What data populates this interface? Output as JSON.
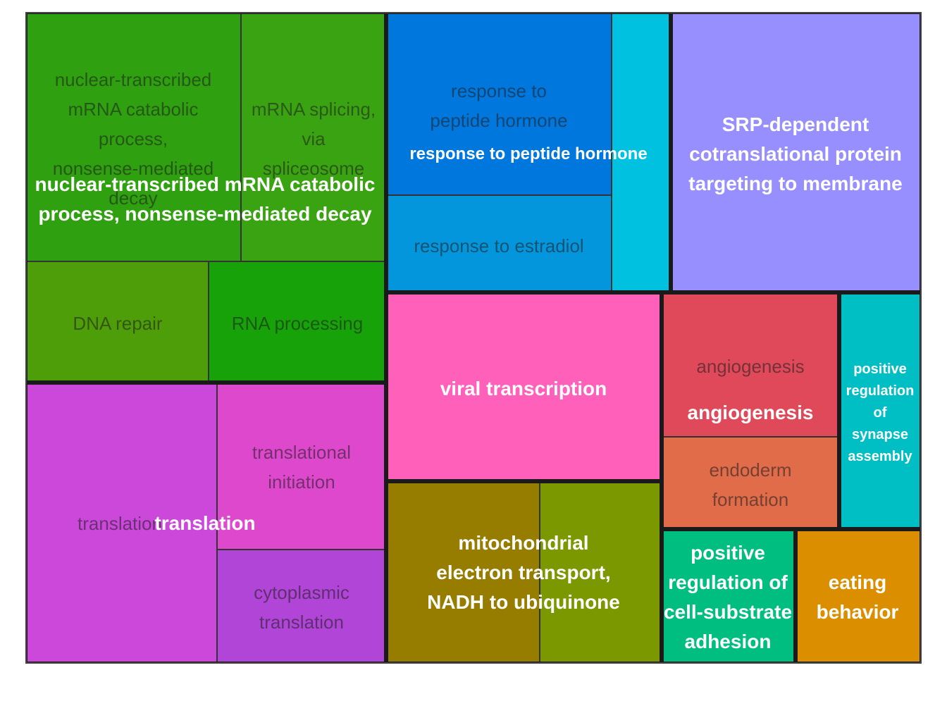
{
  "chart_data": {
    "type": "treemap",
    "title": "",
    "groups": [
      {
        "name": "nuclear-transcribed mRNA catabolic process, nonsense-mediated decay",
        "label_text": "nuclear-transcribed mRNA catabolic\nprocess, nonsense-mediated decay",
        "children": [
          {
            "name": "nuclear-transcribed mRNA catabolic process, nonsense-mediated decay",
            "label_text": "nuclear-transcribed\nmRNA catabolic\nprocess,\nnonsense-mediated\ndecay",
            "color": "#2FA00F"
          },
          {
            "name": "mRNA splicing, via spliceosome",
            "label_text": "mRNA splicing,\nvia\nspliceosome",
            "color": "#3AA312"
          },
          {
            "name": "DNA repair",
            "label_text": "DNA repair",
            "color": "#4E9E0A"
          },
          {
            "name": "RNA processing",
            "label_text": "RNA processing",
            "color": "#18A20A"
          }
        ]
      },
      {
        "name": "response to peptide hormone",
        "label_text": "response to peptide hormone",
        "children": [
          {
            "name": "response to peptide hormone",
            "label_text": "response to\npeptide hormone",
            "color": "#0077DD"
          },
          {
            "name": "response to estradiol",
            "label_text": "response to estradiol",
            "color": "#0496DC"
          },
          {
            "name": "",
            "label_text": "",
            "color": "#00C2E0"
          }
        ]
      },
      {
        "name": "SRP-dependent cotranslational protein targeting to membrane",
        "label_text": "SRP-dependent\ncotranslational protein\ntargeting to membrane",
        "children": [
          {
            "name": "SRP-dependent cotranslational protein targeting to membrane",
            "label_text": "",
            "color": "#978FFE"
          }
        ]
      },
      {
        "name": "translation",
        "label_text": "translation",
        "children": [
          {
            "name": "translation",
            "label_text": "translation",
            "color": "#CB48DB"
          },
          {
            "name": "translational initiation",
            "label_text": "translational\ninitiation",
            "color": "#DE48CC"
          },
          {
            "name": "cytoplasmic translation",
            "label_text": "cytoplasmic\ntranslation",
            "color": "#B045D8"
          }
        ]
      },
      {
        "name": "viral transcription",
        "label_text": "viral transcription",
        "children": [
          {
            "name": "viral transcription",
            "label_text": "",
            "color": "#FF60BA"
          }
        ]
      },
      {
        "name": "mitochondrial electron transport, NADH to ubiquinone",
        "label_text": "mitochondrial\nelectron transport,\nNADH to ubiquinone",
        "children": [
          {
            "name": "mitochondrial electron transport, NADH to ubiquinone",
            "label_text": "",
            "color": "#967D00"
          },
          {
            "name": "",
            "label_text": "",
            "color": "#7B9800"
          }
        ]
      },
      {
        "name": "angiogenesis",
        "label_text": "angiogenesis",
        "children": [
          {
            "name": "angiogenesis",
            "label_text": "angiogenesis",
            "color": "#E0495A"
          },
          {
            "name": "endoderm formation",
            "label_text": "endoderm\nformation",
            "color": "#E06C4A"
          }
        ]
      },
      {
        "name": "positive regulation of synapse assembly",
        "label_text": "positive\nregulation\nof\nsynapse\nassembly",
        "children": [
          {
            "name": "positive regulation of synapse assembly",
            "label_text": "",
            "color": "#00BFC4"
          }
        ]
      },
      {
        "name": "positive regulation of cell-substrate adhesion",
        "label_text": "positive\nregulation of\ncell-substrate\nadhesion",
        "children": [
          {
            "name": "positive regulation of cell-substrate adhesion",
            "label_text": "",
            "color": "#00BE7F"
          }
        ]
      },
      {
        "name": "eating behavior",
        "label_text": "eating\nbehavior",
        "children": [
          {
            "name": "eating behavior",
            "label_text": "",
            "color": "#DB8F00"
          }
        ]
      }
    ]
  }
}
